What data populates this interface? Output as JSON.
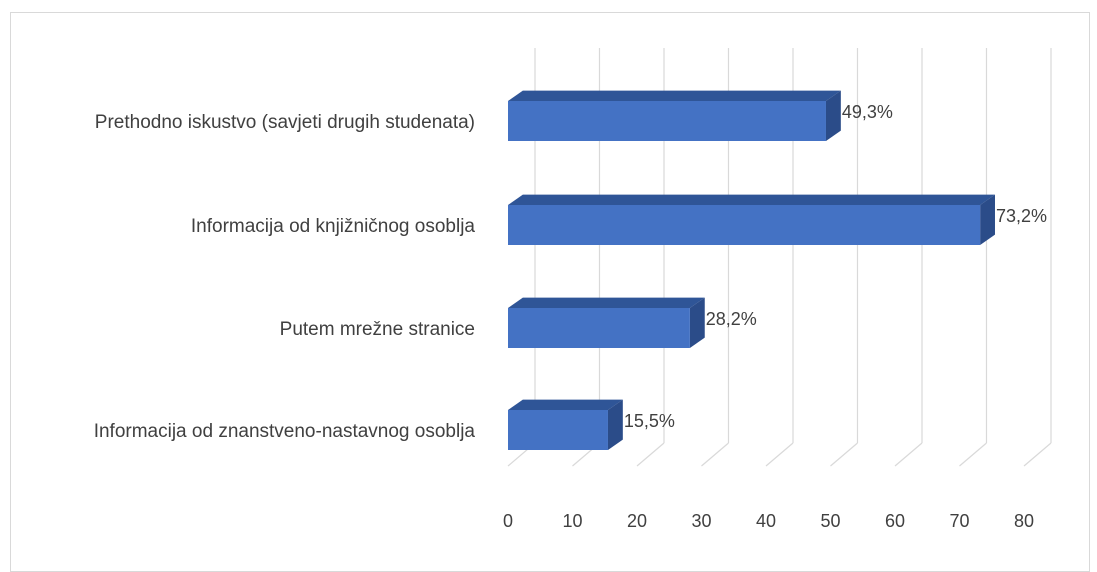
{
  "chart_data": {
    "type": "bar",
    "orientation": "horizontal",
    "style": "3d",
    "categories": [
      "Prethodno iskustvo (savjeti drugih studenata)",
      "Informacija od knjižničnog osoblja",
      "Putem mrežne stranice",
      "Informacija od znanstveno-nastavnog osoblja"
    ],
    "values": [
      49.3,
      73.2,
      28.2,
      15.5
    ],
    "data_labels": [
      "49,3%",
      "73,2%",
      "28,2%",
      "15,5%"
    ],
    "xlim": [
      0,
      80
    ],
    "xticks": [
      0,
      10,
      20,
      30,
      40,
      50,
      60,
      70,
      80
    ],
    "grid": true,
    "legend": "none",
    "colors": {
      "bar_front": "#4472c4",
      "bar_top": "#2f5597",
      "bar_side": "#2b4c89",
      "grid": "#d9d9d9",
      "text": "#404040"
    }
  }
}
